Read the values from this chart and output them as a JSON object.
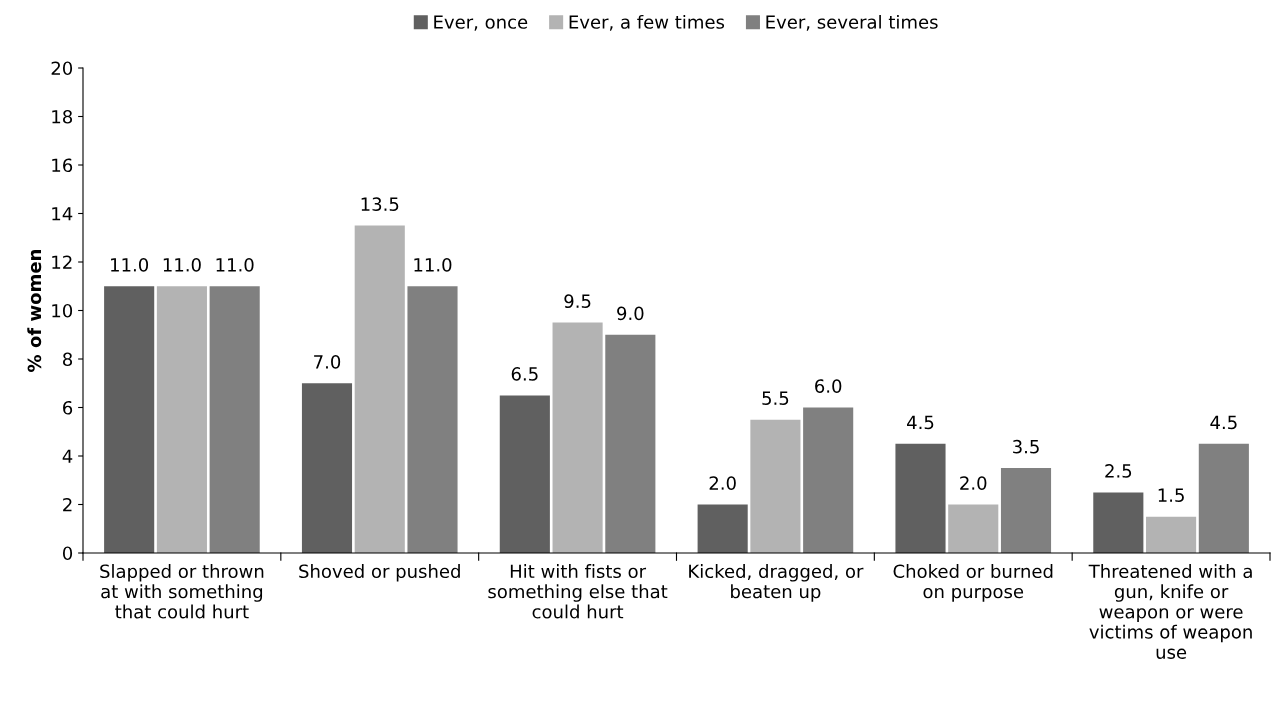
{
  "chart_data": {
    "type": "bar",
    "categories": [
      "Slapped or thrown\nat with something\nthat could hurt",
      "Shoved or pushed",
      "Hit with fists or\nsomething else that\ncould hurt",
      "Kicked, dragged, or\nbeaten up",
      "Choked or burned\non purpose",
      "Threatened with a\ngun, knife or\nweapon or were\nvictims of weapon\nuse"
    ],
    "series": [
      {
        "name": "Ever, once",
        "color": "#606060",
        "values": [
          11.0,
          7.0,
          6.5,
          2.0,
          4.5,
          2.5
        ],
        "value_labels": [
          "11.0",
          "7.0",
          "6.5",
          "2.0",
          "4.5",
          "2.5"
        ]
      },
      {
        "name": "Ever, a few times",
        "color": "#b3b3b3",
        "values": [
          11.0,
          13.5,
          9.5,
          5.5,
          2.0,
          1.5
        ],
        "value_labels": [
          "11.0",
          "13.5",
          "9.5",
          "5.5",
          "2.0",
          "1.5"
        ]
      },
      {
        "name": "Ever, several times",
        "color": "#808080",
        "values": [
          11.0,
          11.0,
          9.0,
          6.0,
          3.5,
          4.5
        ],
        "value_labels": [
          "11.0",
          "11.0",
          "9.0",
          "6.0",
          "3.5",
          "4.5"
        ]
      }
    ],
    "ylabel": "% of women",
    "ylim": [
      0,
      20
    ],
    "yticks": [
      0,
      2,
      4,
      6,
      8,
      10,
      12,
      14,
      16,
      18,
      20
    ],
    "grid": false,
    "legend": "top"
  }
}
